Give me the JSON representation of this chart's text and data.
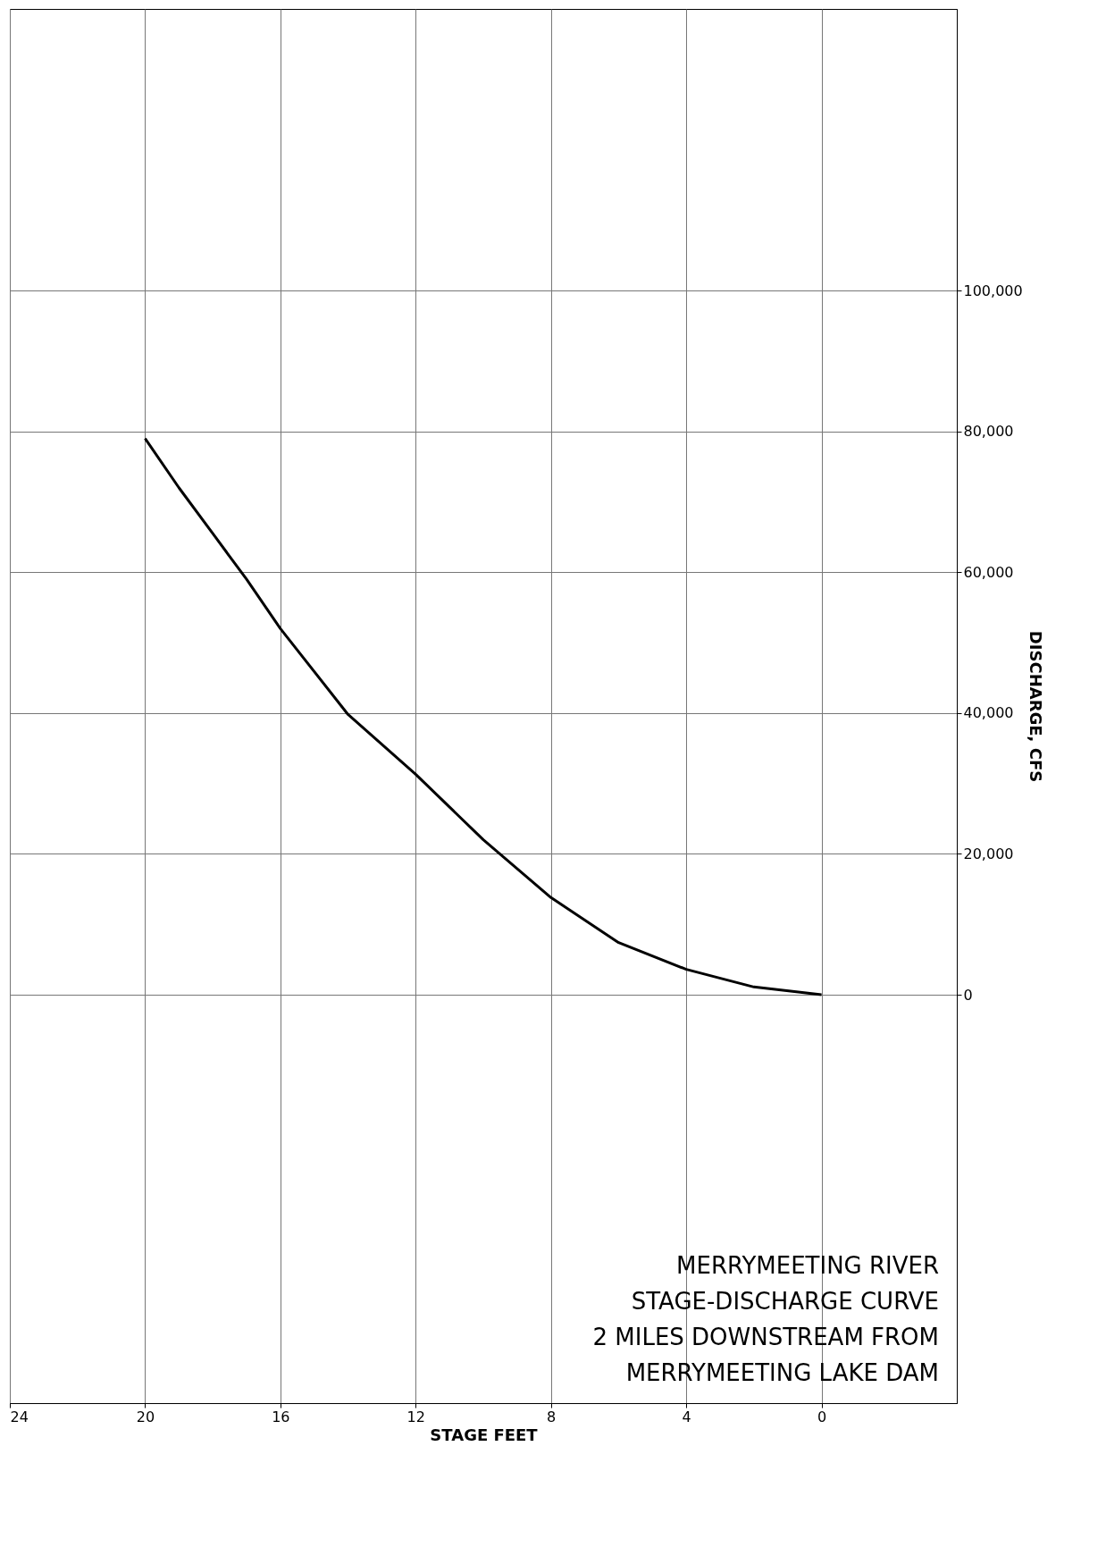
{
  "chart_data": {
    "type": "line",
    "xlabel": "STAGE FEET",
    "ylabel": "DISCHARGE, CFS",
    "x": [
      0,
      2,
      4,
      6,
      8,
      10,
      12,
      14,
      16,
      17,
      18,
      19,
      20
    ],
    "series": [
      {
        "color": "#000000",
        "values": [
          0,
          1100,
          3600,
          7400,
          13800,
          22000,
          31300,
          39800,
          52000,
          59000,
          65500,
          72000,
          79000
        ]
      }
    ],
    "xlim": [
      24,
      -4
    ],
    "ylim": [
      -58000,
      140000
    ],
    "xticks": [
      24,
      20,
      16,
      12,
      8,
      4,
      0
    ],
    "yticks": [
      0,
      {
        "value": 20000,
        "label": "20,000"
      },
      {
        "value": 40000,
        "label": "40,000"
      },
      {
        "value": 60000,
        "label": "60,000"
      },
      {
        "value": 80000,
        "label": "80,000"
      },
      {
        "value": 100000,
        "label": "100,000"
      }
    ],
    "grid": true,
    "marker": "none",
    "line_style": "solid",
    "annotations": [
      "MERRYMEETING RIVER",
      "STAGE-DISCHARGE CURVE",
      "2 MILES DOWNSTREAM FROM",
      "MERRYMEETING LAKE DAM"
    ]
  }
}
